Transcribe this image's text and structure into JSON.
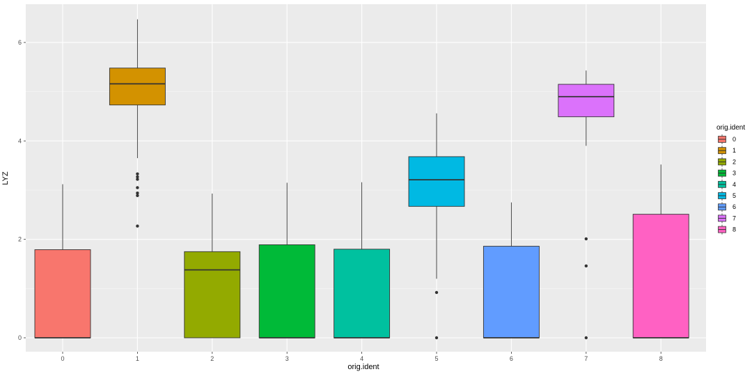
{
  "chart_data": {
    "type": "box",
    "xlabel": "orig.ident",
    "ylabel": "LYZ",
    "ylim": [
      -0.35,
      6.6
    ],
    "yticks": [
      0,
      2,
      4,
      6
    ],
    "categories": [
      "0",
      "1",
      "2",
      "3",
      "4",
      "5",
      "6",
      "7",
      "8"
    ],
    "grid": true,
    "legend": {
      "title": "orig.ident",
      "position": "right",
      "entries": [
        "0",
        "1",
        "2",
        "3",
        "4",
        "5",
        "6",
        "7",
        "8"
      ]
    },
    "colors": [
      "#F8766D",
      "#D39200",
      "#93AA00",
      "#00BA38",
      "#00C19F",
      "#00B9E3",
      "#619CFF",
      "#DB72FB",
      "#FF61C3"
    ],
    "boxes": [
      {
        "category": "0",
        "min": 0,
        "q1": 0,
        "median": 0,
        "q3": 1.79,
        "max": 3.12,
        "outliers": []
      },
      {
        "category": "1",
        "min": 3.65,
        "q1": 4.73,
        "median": 5.16,
        "q3": 5.48,
        "max": 6.47,
        "outliers": [
          3.33,
          3.27,
          3.22,
          3.05,
          2.94,
          2.89,
          2.27
        ]
      },
      {
        "category": "2",
        "min": 0,
        "q1": 0,
        "median": 1.38,
        "q3": 1.75,
        "max": 2.93,
        "outliers": []
      },
      {
        "category": "3",
        "min": 0,
        "q1": 0,
        "median": 0,
        "q3": 1.89,
        "max": 3.15,
        "outliers": []
      },
      {
        "category": "4",
        "min": 0,
        "q1": 0,
        "median": 0,
        "q3": 1.8,
        "max": 3.16,
        "outliers": []
      },
      {
        "category": "5",
        "min": 1.2,
        "q1": 2.67,
        "median": 3.21,
        "q3": 3.68,
        "max": 4.56,
        "outliers": [
          0.92,
          0
        ]
      },
      {
        "category": "6",
        "min": 0,
        "q1": 0,
        "median": 0,
        "q3": 1.86,
        "max": 2.75,
        "outliers": []
      },
      {
        "category": "7",
        "min": 3.9,
        "q1": 4.49,
        "median": 4.9,
        "q3": 5.15,
        "max": 5.43,
        "outliers": [
          2.01,
          1.46,
          0
        ]
      },
      {
        "category": "8",
        "min": 0,
        "q1": 0,
        "median": 0,
        "q3": 2.51,
        "max": 3.52,
        "outliers": []
      }
    ]
  }
}
